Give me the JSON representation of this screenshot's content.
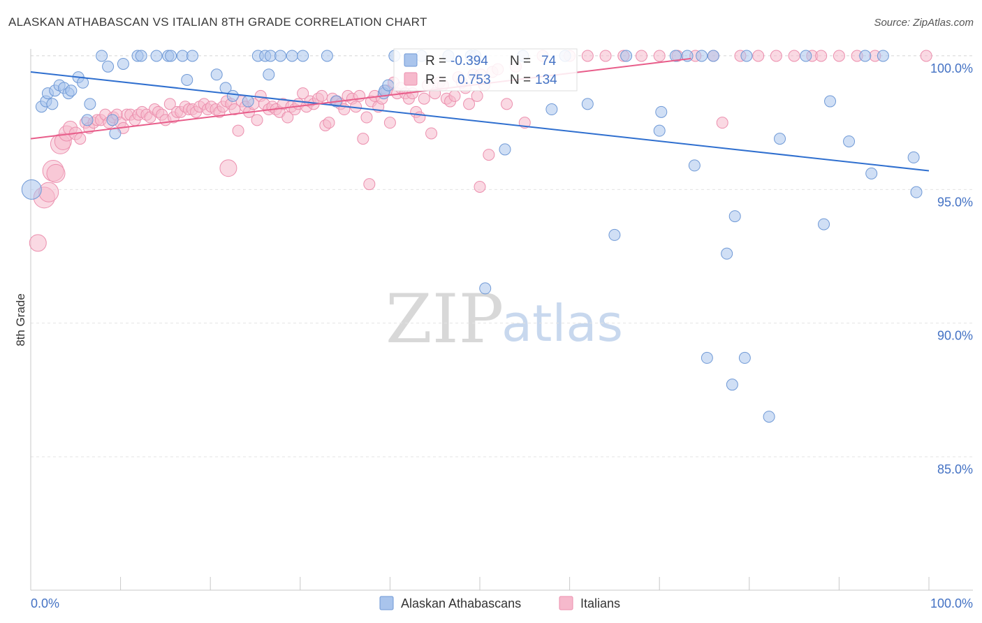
{
  "header": {
    "title": "ALASKAN ATHABASCAN VS ITALIAN 8TH GRADE CORRELATION CHART",
    "source": "Source: ZipAtlas.com"
  },
  "watermark": {
    "zip": "ZIP",
    "atlas": "atlas"
  },
  "stats": {
    "blue": {
      "r_label": "R =",
      "r_value": "-0.394",
      "n_label": "N =",
      "n_value": "74"
    },
    "pink": {
      "r_label": "R =",
      "r_value": "0.753",
      "n_label": "N =",
      "n_value": "134"
    }
  },
  "colors": {
    "blue_fill": "#a9c4ec",
    "blue_stroke": "#6f99d6",
    "blue_line": "#2f6fcf",
    "pink_fill": "#f6b9cc",
    "pink_stroke": "#ec8fae",
    "pink_line": "#e85d8a",
    "tick_label": "#4472c4",
    "grid": "#e3e3e3"
  },
  "chart_data": {
    "type": "scatter",
    "title": "ALASKAN ATHABASCAN VS ITALIAN 8TH GRADE CORRELATION CHART",
    "xlabel": "",
    "ylabel": "8th Grade",
    "xlim": [
      0,
      100
    ],
    "ylim": [
      80.5,
      100.5
    ],
    "x_tick_labels": [
      "0.0%",
      "100.0%"
    ],
    "y_ticks": [
      85,
      90,
      95,
      100
    ],
    "y_tick_labels": [
      "85.0%",
      "90.0%",
      "95.0%",
      "100.0%"
    ],
    "grid": true,
    "legend_position": "bottom-center",
    "series": [
      {
        "name": "Alaskan Athabascans",
        "r": -0.394,
        "n": 74,
        "trend": {
          "x": [
            0,
            100
          ],
          "y": [
            99.4,
            95.7
          ]
        },
        "points": [
          [
            0.1,
            95.0,
            14
          ],
          [
            1.2,
            98.1,
            8
          ],
          [
            1.7,
            98.3,
            8
          ],
          [
            1.9,
            98.6,
            8
          ],
          [
            2.4,
            98.2,
            8
          ],
          [
            2.7,
            98.7,
            8
          ],
          [
            3.2,
            98.9,
            8
          ],
          [
            3.7,
            98.8,
            8
          ],
          [
            4.2,
            98.6,
            8
          ],
          [
            4.5,
            98.7,
            8
          ],
          [
            5.3,
            99.2,
            8
          ],
          [
            5.8,
            99.0,
            8
          ],
          [
            6.3,
            97.6,
            8
          ],
          [
            6.6,
            98.2,
            8
          ],
          [
            7.9,
            100.0,
            8
          ],
          [
            8.6,
            99.6,
            8
          ],
          [
            9.1,
            97.6,
            8
          ],
          [
            9.4,
            97.1,
            8
          ],
          [
            10.3,
            99.7,
            8
          ],
          [
            11.9,
            100.0,
            8
          ],
          [
            12.3,
            100.0,
            8
          ],
          [
            14.0,
            100.0,
            8
          ],
          [
            15.3,
            100.0,
            8
          ],
          [
            15.6,
            100.0,
            8
          ],
          [
            16.9,
            100.0,
            8
          ],
          [
            17.4,
            99.1,
            8
          ],
          [
            18.0,
            100.0,
            8
          ],
          [
            20.7,
            99.3,
            8
          ],
          [
            21.7,
            98.8,
            8
          ],
          [
            22.5,
            98.5,
            8
          ],
          [
            24.2,
            98.3,
            8
          ],
          [
            25.3,
            100.0,
            8
          ],
          [
            26.1,
            100.0,
            8
          ],
          [
            26.5,
            99.3,
            8
          ],
          [
            26.7,
            100.0,
            8
          ],
          [
            27.8,
            100.0,
            8
          ],
          [
            29.1,
            100.0,
            8
          ],
          [
            30.3,
            100.0,
            8
          ],
          [
            33.0,
            100.0,
            8
          ],
          [
            34.0,
            98.3,
            8
          ],
          [
            39.3,
            98.6,
            8
          ],
          [
            39.4,
            98.7,
            8
          ],
          [
            39.8,
            98.9,
            8
          ],
          [
            40.5,
            100.0,
            8
          ],
          [
            43.5,
            100.0,
            8
          ],
          [
            46.5,
            100.0,
            8
          ],
          [
            49.0,
            100.0,
            8
          ],
          [
            49.5,
            100.0,
            8
          ],
          [
            50.6,
            91.3,
            8
          ],
          [
            52.8,
            96.5,
            8
          ],
          [
            54.8,
            100.0,
            8
          ],
          [
            58.0,
            98.0,
            8
          ],
          [
            59.5,
            100.0,
            8
          ],
          [
            62.0,
            98.2,
            8
          ],
          [
            65.0,
            93.3,
            8
          ],
          [
            66.3,
            100.0,
            8
          ],
          [
            70.0,
            97.2,
            8
          ],
          [
            70.2,
            97.9,
            8
          ],
          [
            71.8,
            100.0,
            8
          ],
          [
            73.1,
            100.0,
            8
          ],
          [
            73.9,
            95.9,
            8
          ],
          [
            74.7,
            100.0,
            8
          ],
          [
            75.3,
            88.7,
            8
          ],
          [
            76.0,
            100.0,
            8
          ],
          [
            77.5,
            92.6,
            8
          ],
          [
            78.1,
            87.7,
            8
          ],
          [
            78.4,
            94.0,
            8
          ],
          [
            79.5,
            88.7,
            8
          ],
          [
            79.7,
            100.0,
            8
          ],
          [
            82.2,
            86.5,
            8
          ],
          [
            83.4,
            96.9,
            8
          ],
          [
            86.3,
            100.0,
            8
          ],
          [
            88.3,
            93.7,
            8
          ],
          [
            89.0,
            98.3,
            8
          ],
          [
            91.1,
            96.8,
            8
          ],
          [
            92.9,
            100.0,
            8
          ],
          [
            93.6,
            95.6,
            8
          ],
          [
            94.9,
            100.0,
            8
          ],
          [
            98.3,
            96.2,
            8
          ],
          [
            98.6,
            94.9,
            8
          ]
        ]
      },
      {
        "name": "Italians",
        "r": 0.753,
        "n": 134,
        "trend": {
          "x": [
            0,
            73.5
          ],
          "y": [
            96.9,
            99.9
          ]
        },
        "points": [
          [
            0.8,
            93.0,
            12
          ],
          [
            1.5,
            94.7,
            15
          ],
          [
            2.0,
            94.9,
            14
          ],
          [
            2.5,
            95.7,
            15
          ],
          [
            2.8,
            95.6,
            13
          ],
          [
            3.3,
            96.7,
            14
          ],
          [
            3.6,
            96.8,
            12
          ],
          [
            4.0,
            97.1,
            11
          ],
          [
            4.4,
            97.3,
            10
          ],
          [
            5.0,
            97.1,
            9
          ],
          [
            5.5,
            96.9,
            8
          ],
          [
            6.1,
            97.5,
            8
          ],
          [
            6.5,
            97.3,
            8
          ],
          [
            7.0,
            97.5,
            8
          ],
          [
            7.4,
            97.6,
            8
          ],
          [
            7.8,
            97.6,
            8
          ],
          [
            8.3,
            97.8,
            8
          ],
          [
            8.7,
            97.5,
            8
          ],
          [
            9.2,
            97.7,
            8
          ],
          [
            9.6,
            97.8,
            8
          ],
          [
            10.0,
            97.5,
            8
          ],
          [
            10.3,
            97.3,
            8
          ],
          [
            10.7,
            97.8,
            8
          ],
          [
            11.1,
            97.8,
            8
          ],
          [
            11.6,
            97.6,
            8
          ],
          [
            12.0,
            97.8,
            8
          ],
          [
            12.4,
            97.9,
            8
          ],
          [
            12.9,
            97.8,
            8
          ],
          [
            13.3,
            97.7,
            8
          ],
          [
            13.8,
            98.0,
            8
          ],
          [
            14.2,
            97.9,
            8
          ],
          [
            14.6,
            97.8,
            8
          ],
          [
            15.0,
            97.6,
            8
          ],
          [
            15.5,
            98.2,
            8
          ],
          [
            15.9,
            97.7,
            8
          ],
          [
            16.3,
            97.9,
            8
          ],
          [
            16.7,
            97.9,
            8
          ],
          [
            17.2,
            98.1,
            8
          ],
          [
            17.6,
            98.0,
            8
          ],
          [
            18.0,
            98.0,
            8
          ],
          [
            18.4,
            97.9,
            8
          ],
          [
            18.8,
            98.1,
            8
          ],
          [
            19.3,
            98.2,
            8
          ],
          [
            19.7,
            98.0,
            8
          ],
          [
            20.1,
            98.1,
            8
          ],
          [
            20.6,
            98.0,
            8
          ],
          [
            21.0,
            97.9,
            8
          ],
          [
            21.4,
            98.1,
            8
          ],
          [
            21.8,
            98.3,
            8
          ],
          [
            22.3,
            98.2,
            8
          ],
          [
            22.7,
            98.0,
            8
          ],
          [
            23.1,
            97.2,
            8
          ],
          [
            23.5,
            98.3,
            8
          ],
          [
            23.9,
            98.1,
            8
          ],
          [
            24.3,
            97.9,
            8
          ],
          [
            24.8,
            98.2,
            8
          ],
          [
            25.2,
            97.6,
            8
          ],
          [
            25.6,
            98.5,
            8
          ],
          [
            26.0,
            98.2,
            8
          ],
          [
            26.5,
            98.0,
            8
          ],
          [
            26.9,
            98.1,
            8
          ],
          [
            27.3,
            98.0,
            8
          ],
          [
            27.7,
            97.9,
            8
          ],
          [
            28.1,
            98.2,
            8
          ],
          [
            28.6,
            97.7,
            8
          ],
          [
            29.0,
            98.1,
            8
          ],
          [
            29.4,
            98.0,
            8
          ],
          [
            29.8,
            98.2,
            8
          ],
          [
            30.3,
            98.6,
            8
          ],
          [
            30.7,
            98.1,
            8
          ],
          [
            31.1,
            98.3,
            8
          ],
          [
            31.5,
            98.2,
            8
          ],
          [
            32.0,
            98.4,
            8
          ],
          [
            32.4,
            98.5,
            8
          ],
          [
            32.8,
            97.4,
            8
          ],
          [
            33.2,
            97.5,
            8
          ],
          [
            33.6,
            98.4,
            8
          ],
          [
            34.1,
            98.3,
            8
          ],
          [
            34.5,
            98.2,
            8
          ],
          [
            34.9,
            98.0,
            8
          ],
          [
            35.3,
            98.5,
            8
          ],
          [
            35.8,
            98.4,
            8
          ],
          [
            36.2,
            98.1,
            8
          ],
          [
            36.6,
            98.5,
            8
          ],
          [
            37.0,
            96.9,
            8
          ],
          [
            37.4,
            97.7,
            8
          ],
          [
            37.9,
            98.3,
            8
          ],
          [
            38.3,
            98.5,
            8
          ],
          [
            38.7,
            98.1,
            8
          ],
          [
            39.1,
            98.4,
            8
          ],
          [
            39.6,
            98.7,
            8
          ],
          [
            40.0,
            97.5,
            8
          ],
          [
            40.4,
            99.0,
            8
          ],
          [
            40.8,
            98.6,
            8
          ],
          [
            41.2,
            98.8,
            8
          ],
          [
            41.7,
            98.6,
            8
          ],
          [
            42.1,
            98.4,
            8
          ],
          [
            42.5,
            98.6,
            8
          ],
          [
            42.9,
            97.9,
            8
          ],
          [
            43.3,
            97.7,
            8
          ],
          [
            43.8,
            98.4,
            8
          ],
          [
            44.2,
            98.9,
            8
          ],
          [
            44.6,
            97.1,
            8
          ],
          [
            45.0,
            98.6,
            8
          ],
          [
            45.5,
            99.0,
            8
          ],
          [
            45.9,
            98.9,
            8
          ],
          [
            46.3,
            98.4,
            8
          ],
          [
            46.7,
            98.3,
            8
          ],
          [
            47.2,
            98.5,
            8
          ],
          [
            47.6,
            99.2,
            8
          ],
          [
            48.0,
            99.0,
            8
          ],
          [
            48.4,
            98.8,
            8
          ],
          [
            48.8,
            98.2,
            8
          ],
          [
            49.3,
            99.3,
            8
          ],
          [
            49.7,
            98.5,
            8
          ],
          [
            50.1,
            99.3,
            8
          ],
          [
            50.5,
            98.9,
            8
          ],
          [
            51.0,
            96.3,
            8
          ],
          [
            51.4,
            99.4,
            8
          ],
          [
            52.0,
            99.5,
            8
          ],
          [
            53.0,
            98.2,
            8
          ],
          [
            54.0,
            99.6,
            8
          ],
          [
            55.0,
            97.5,
            8
          ],
          [
            57.0,
            100.0,
            8
          ],
          [
            60.0,
            100.0,
            8
          ],
          [
            62.0,
            100.0,
            8
          ],
          [
            64.0,
            100.0,
            8
          ],
          [
            66.0,
            100.0,
            8
          ],
          [
            68.0,
            100.0,
            8
          ],
          [
            70.0,
            100.0,
            8
          ],
          [
            72.0,
            100.0,
            8
          ],
          [
            74.0,
            100.0,
            8
          ],
          [
            76.0,
            100.0,
            8
          ],
          [
            77.0,
            97.5,
            8
          ],
          [
            79.0,
            100.0,
            8
          ],
          [
            81.0,
            100.0,
            8
          ],
          [
            83.0,
            100.0,
            8
          ],
          [
            85.0,
            100.0,
            8
          ],
          [
            87.0,
            100.0,
            8
          ],
          [
            88.0,
            100.0,
            8
          ],
          [
            90.0,
            100.0,
            8
          ],
          [
            92.0,
            100.0,
            8
          ],
          [
            94.0,
            100.0,
            8
          ],
          [
            99.7,
            100.0,
            8
          ],
          [
            50.0,
            95.1,
            8
          ],
          [
            37.7,
            95.2,
            8
          ],
          [
            22.0,
            95.8,
            12
          ]
        ]
      }
    ]
  }
}
